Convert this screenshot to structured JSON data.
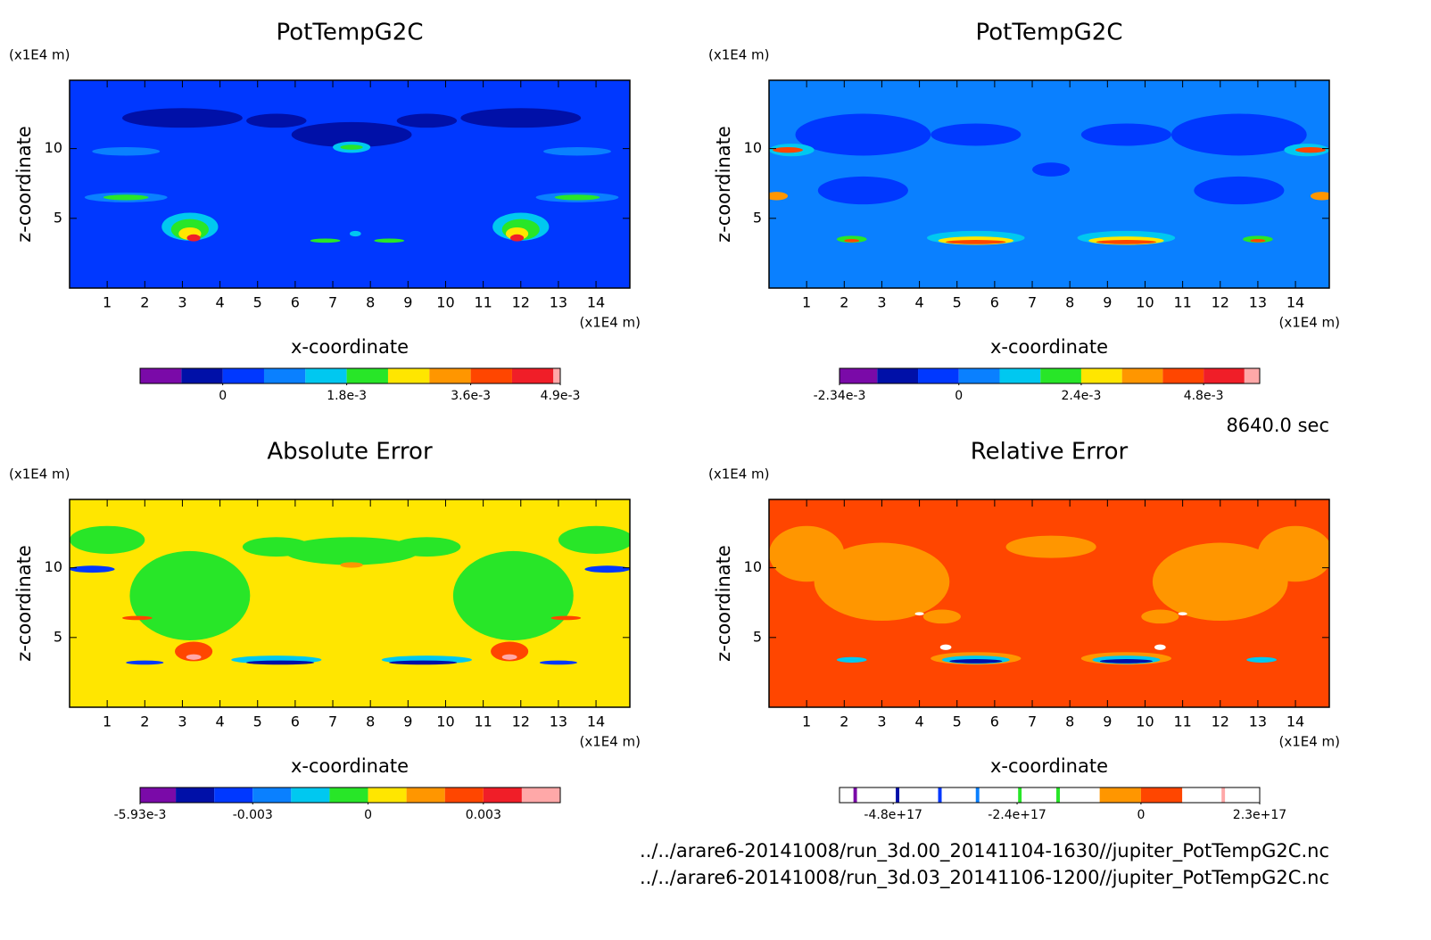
{
  "chart_data": [
    {
      "type": "contour",
      "title": "PotTempG2C",
      "xlabel": "x-coordinate",
      "ylabel": "z-coordinate",
      "x_unit": "(x1E4 m)",
      "y_unit": "(x1E4 m)",
      "xlim": [
        0,
        14.9
      ],
      "ylim": [
        0,
        14.9
      ],
      "xticks": [
        1,
        2,
        3,
        4,
        5,
        6,
        7,
        8,
        9,
        10,
        11,
        12,
        13,
        14
      ],
      "yticks": [
        5,
        10
      ],
      "field_color": "#0038ff",
      "colorbar": {
        "levels": [
          -0.0012,
          -0.0006,
          0,
          0.0006,
          0.0012,
          0.0018,
          0.0024,
          0.003,
          0.0036,
          0.0042,
          0.0048,
          0.0049
        ],
        "colors": [
          "#7a0aa8",
          "#0010a8",
          "#0038ff",
          "#0a80ff",
          "#00c8f0",
          "#28e628",
          "#ffe600",
          "#ff9600",
          "#ff4600",
          "#f01e28",
          "#ffa8a8"
        ],
        "ticks": [
          {
            "value": 0,
            "label": "0"
          },
          {
            "value": 0.0018,
            "label": "1.8e-3"
          },
          {
            "value": 0.0036,
            "label": "3.6e-3"
          },
          {
            "value": 0.0049,
            "label": "4.9e-3"
          }
        ]
      }
    },
    {
      "type": "contour",
      "title": "PotTempG2C",
      "xlabel": "x-coordinate",
      "ylabel": "z-coordinate",
      "x_unit": "(x1E4 m)",
      "y_unit": "(x1E4 m)",
      "xlim": [
        0,
        14.9
      ],
      "ylim": [
        0,
        14.9
      ],
      "xticks": [
        1,
        2,
        3,
        4,
        5,
        6,
        7,
        8,
        9,
        10,
        11,
        12,
        13,
        14
      ],
      "yticks": [
        5,
        10
      ],
      "field_color": "#0a80ff",
      "colorbar": {
        "levels": [
          -0.00234,
          -0.0016,
          -0.0008,
          0,
          0.0008,
          0.0016,
          0.0024,
          0.0032,
          0.004,
          0.0048,
          0.0056,
          0.0059
        ],
        "colors": [
          "#7a0aa8",
          "#0010a8",
          "#0038ff",
          "#0a80ff",
          "#00c8f0",
          "#28e628",
          "#ffe600",
          "#ff9600",
          "#ff4600",
          "#f01e28",
          "#ffa8a8"
        ],
        "ticks": [
          {
            "value": -0.00234,
            "label": "-2.34e-3"
          },
          {
            "value": 0,
            "label": "0"
          },
          {
            "value": 0.0024,
            "label": "2.4e-3"
          },
          {
            "value": 0.0048,
            "label": "4.8e-3"
          }
        ]
      }
    },
    {
      "type": "contour",
      "title": "Absolute Error",
      "xlabel": "x-coordinate",
      "ylabel": "z-coordinate",
      "x_unit": "(x1E4 m)",
      "y_unit": "(x1E4 m)",
      "xlim": [
        0,
        14.9
      ],
      "ylim": [
        0,
        14.9
      ],
      "xticks": [
        1,
        2,
        3,
        4,
        5,
        6,
        7,
        8,
        9,
        10,
        11,
        12,
        13,
        14
      ],
      "yticks": [
        5,
        10
      ],
      "field_color": "#ffe600",
      "colorbar": {
        "levels": [
          -0.00593,
          -0.005,
          -0.004,
          -0.003,
          -0.002,
          -0.001,
          0,
          0.001,
          0.002,
          0.003,
          0.004,
          0.005
        ],
        "colors": [
          "#7a0aa8",
          "#0010a8",
          "#0038ff",
          "#0a80ff",
          "#00c8f0",
          "#28e628",
          "#ffe600",
          "#ff9600",
          "#ff4600",
          "#f01e28",
          "#ffa8a8"
        ],
        "ticks": [
          {
            "value": -0.00593,
            "label": "-5.93e-3"
          },
          {
            "value": -0.003,
            "label": "-0.003"
          },
          {
            "value": 0,
            "label": "0"
          },
          {
            "value": 0.003,
            "label": "0.003"
          }
        ]
      }
    },
    {
      "type": "contour",
      "title": "Relative Error",
      "xlabel": "x-coordinate",
      "ylabel": "z-coordinate",
      "x_unit": "(x1E4 m)",
      "y_unit": "(x1E4 m)",
      "xlim": [
        0,
        14.9
      ],
      "ylim": [
        0,
        14.9
      ],
      "xticks": [
        1,
        2,
        3,
        4,
        5,
        6,
        7,
        8,
        9,
        10,
        11,
        12,
        13,
        14
      ],
      "yticks": [
        5,
        10
      ],
      "field_color": "#ff4600",
      "colorbar": {
        "levels": [
          -5.84e+17,
          -5.57e+17,
          -5.5e+17,
          -4.75e+17,
          -4.68e+17,
          -3.93e+17,
          -3.86e+17,
          -3.2e+17,
          -3.13e+17,
          -2.38e+17,
          -2.31e+17,
          -1.64e+17,
          -1.57e+17,
          -8e+16,
          0,
          8e+16,
          1.56e+17,
          1.63e+17,
          2.3e+17
        ],
        "colors": [
          "#ffffff",
          "#7a0aa8",
          "#ffffff",
          "#0010a8",
          "#ffffff",
          "#0038ff",
          "#ffffff",
          "#0a80ff",
          "#ffffff",
          "#28e628",
          "#ffffff",
          "#28e628",
          "#ffffff",
          "#ff9600",
          "#ff4600",
          "#ffffff",
          "#ffa8a8",
          "#ffffff"
        ],
        "ticks": [
          {
            "value": -4.8e+17,
            "label": "-4.8e+17"
          },
          {
            "value": -2.4e+17,
            "label": "-2.4e+17"
          },
          {
            "value": 0,
            "label": "0"
          },
          {
            "value": 2.3e+17,
            "label": "2.3e+17"
          }
        ]
      }
    }
  ],
  "run_info": {
    "time": "8640.0 sec",
    "files": [
      "../../arare6-20141008/run_3d.00_20141104-1630//jupiter_PotTempG2C.nc",
      "../../arare6-20141008/run_3d.03_20141106-1200//jupiter_PotTempG2C.nc"
    ]
  }
}
